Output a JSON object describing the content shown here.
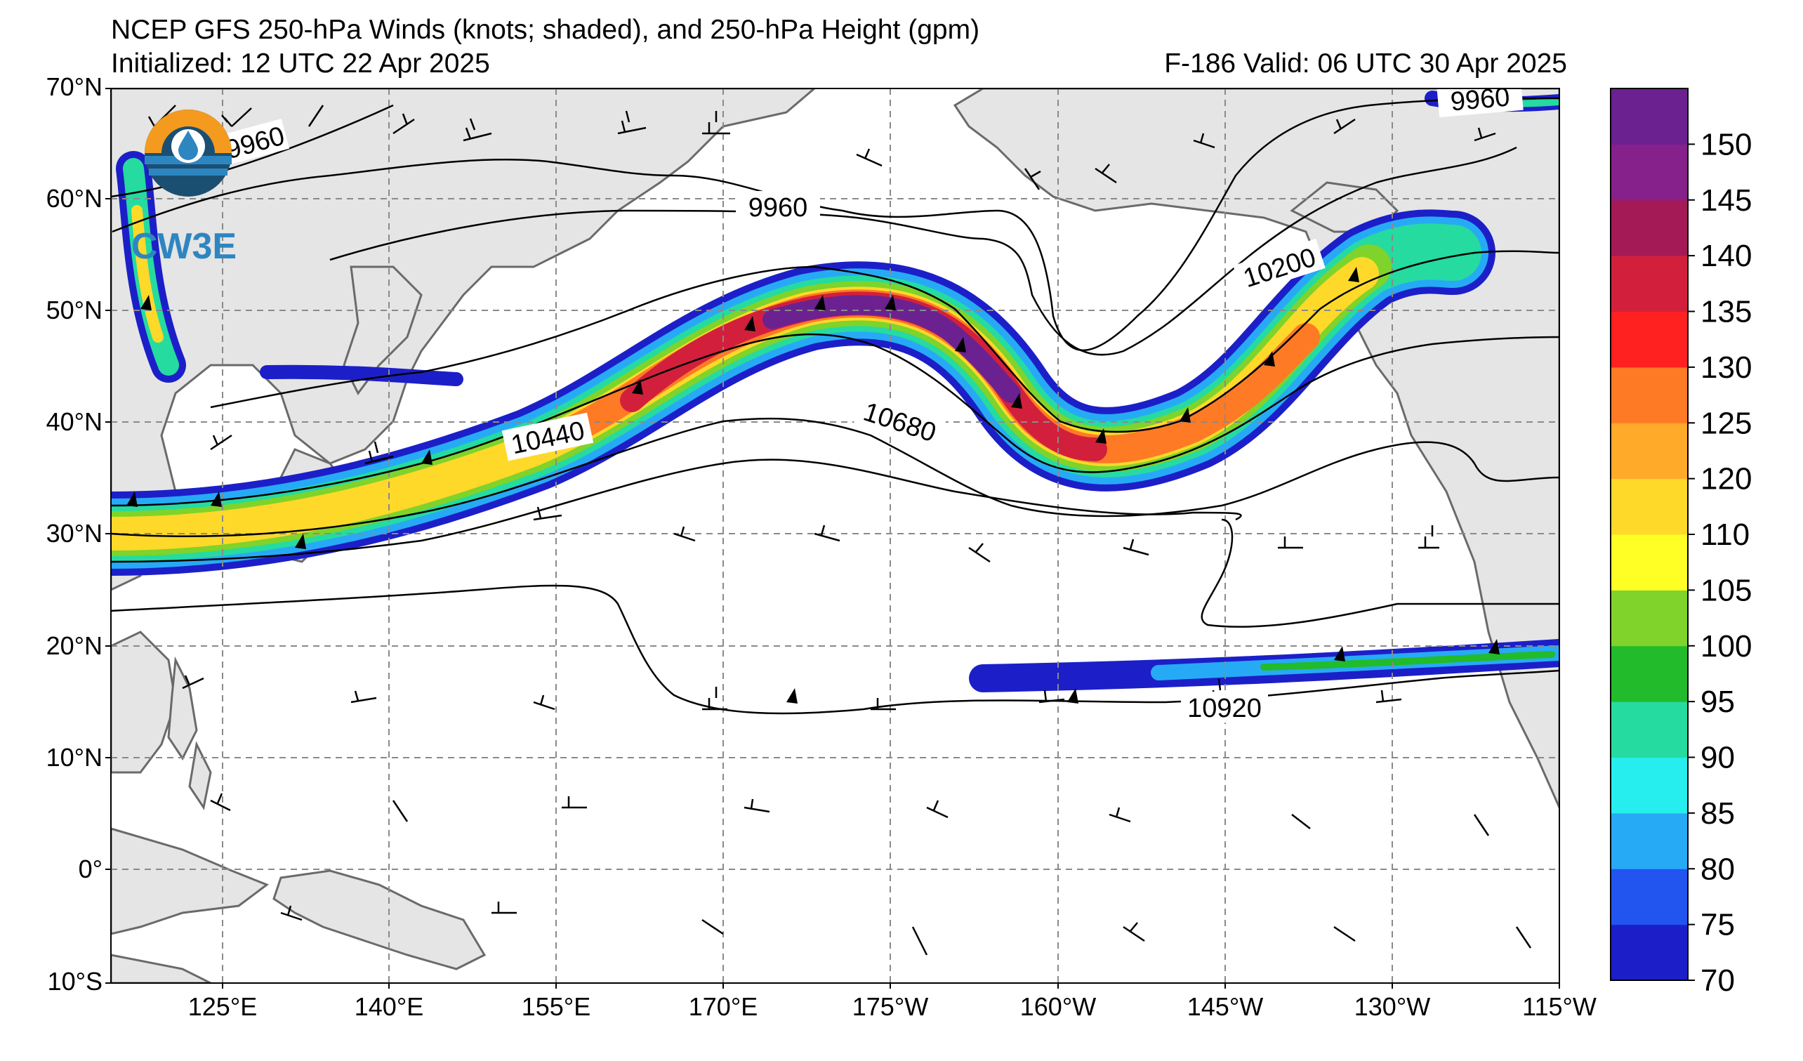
{
  "header": {
    "title": "NCEP GFS 250-hPa Winds (knots; shaded), and 250-hPa Height (gpm)",
    "initialized": "Initialized: 12 UTC 22 Apr 2025",
    "valid": "F-186  Valid: 06 UTC 30 Apr 2025"
  },
  "logo": {
    "text": "CW3E",
    "colors": [
      "#f39a1f",
      "#2e86c1",
      "#1b4f72"
    ]
  },
  "map": {
    "lat_labels": [
      "70°N",
      "60°N",
      "50°N",
      "40°N",
      "30°N",
      "20°N",
      "10°N",
      "0°",
      "10°S"
    ],
    "lon_labels": [
      "125°E",
      "140°E",
      "155°E",
      "170°E",
      "175°W",
      "160°W",
      "145°W",
      "130°W",
      "115°W"
    ],
    "height_contour_labels": [
      "9960",
      "9960",
      "9960",
      "10200",
      "10440",
      "10680",
      "10920"
    ],
    "land_color": "#e5e5e5",
    "grid_style": "dashed gray"
  },
  "colorbar": {
    "ticks": [
      "150",
      "145",
      "140",
      "135",
      "130",
      "125",
      "120",
      "110",
      "105",
      "100",
      "95",
      "90",
      "85",
      "80",
      "75",
      "70"
    ],
    "colors": [
      "#1c1fc8",
      "#2255f0",
      "#27aaf5",
      "#26eeee",
      "#25dba0",
      "#21bb2c",
      "#7fd32a",
      "#ffff26",
      "#ffd92a",
      "#ffab29",
      "#ff7a25",
      "#ff2020",
      "#d2203c",
      "#a31a56",
      "#86208a",
      "#6b2290"
    ]
  }
}
